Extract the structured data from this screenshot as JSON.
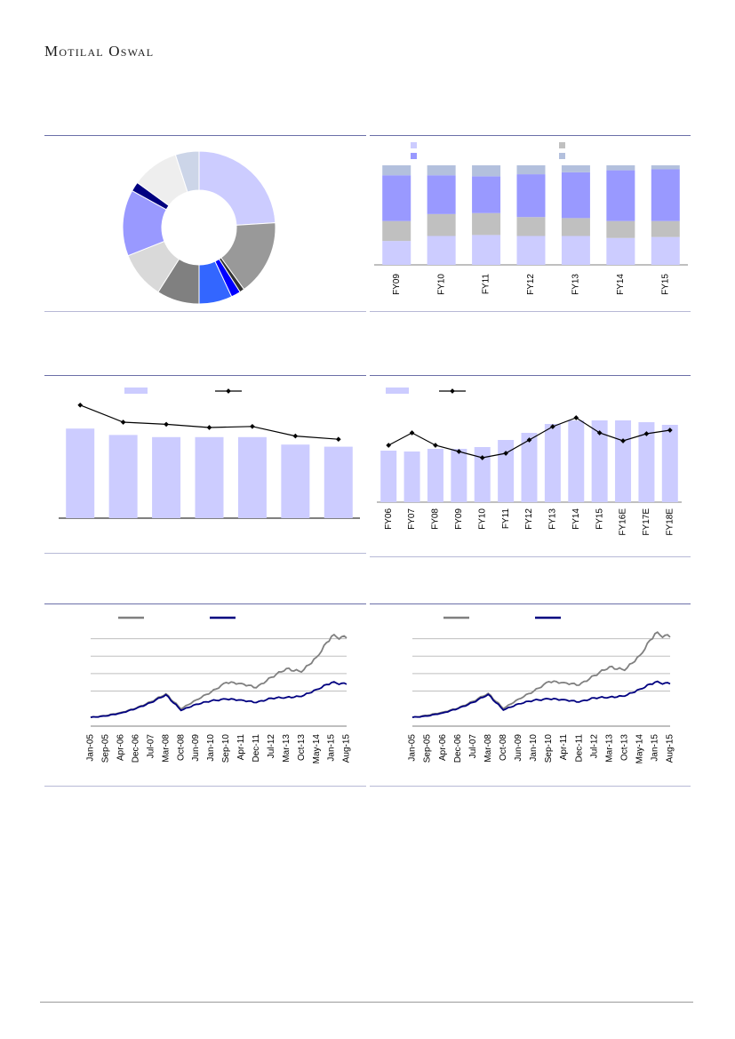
{
  "header": {
    "brand": "Motilal Oswal"
  },
  "colors": {
    "rule": "#6b6fa8",
    "light_bar": "#ccccff",
    "mid_bar": "#9999ff",
    "grey_bar": "#c0c0c0",
    "steel_bar": "#b3c0dd",
    "dark_navy": "#000080",
    "grey_line": "#808080"
  },
  "chart_data": [
    {
      "id": "donut",
      "type": "pie",
      "title": "",
      "slices": [
        {
          "value": 24,
          "color": "#ccccff"
        },
        {
          "value": 16,
          "color": "#999999"
        },
        {
          "value": 1,
          "color": "#333333"
        },
        {
          "value": 2,
          "color": "#0000ff"
        },
        {
          "value": 7,
          "color": "#3366ff"
        },
        {
          "value": 9,
          "color": "#808080"
        },
        {
          "value": 10,
          "color": "#d9d9d9"
        },
        {
          "value": 14,
          "color": "#9999ff"
        },
        {
          "value": 2,
          "color": "#000080"
        },
        {
          "value": 10,
          "color": "#eeeeee"
        },
        {
          "value": 5,
          "color": "#ccd5e8"
        }
      ]
    },
    {
      "id": "stacked",
      "type": "bar",
      "title": "",
      "categories": [
        "FY09",
        "FY10",
        "FY11",
        "FY12",
        "FY13",
        "FY14",
        "FY15"
      ],
      "series": [
        {
          "values": [
            24,
            29,
            30,
            29,
            29,
            27,
            28
          ],
          "color": "#ccccff"
        },
        {
          "values": [
            20,
            22,
            22,
            19,
            18,
            17,
            16
          ],
          "color": "#c0c0c0"
        },
        {
          "values": [
            46,
            39,
            37,
            43,
            46,
            51,
            52
          ],
          "color": "#9999ff"
        },
        {
          "values": [
            10,
            10,
            11,
            9,
            7,
            5,
            4
          ],
          "color": "#b3c0dd"
        }
      ],
      "legend_colors": [
        "#ccccff",
        "#9999ff",
        "#c0c0c0",
        "#b3c0dd"
      ],
      "ylim": [
        0,
        100
      ]
    },
    {
      "id": "bars_line_a",
      "type": "bar",
      "title": "",
      "categories": [
        "",
        "",
        "",
        "",
        "",
        "",
        ""
      ],
      "series": [
        {
          "type": "bar",
          "values": [
            84,
            78,
            76,
            76,
            76,
            69,
            67
          ],
          "color": "#ccccff"
        },
        {
          "type": "line",
          "values": [
            106,
            90,
            88,
            85,
            86,
            77,
            74
          ],
          "color": "#000000"
        }
      ],
      "ylim": [
        0,
        115
      ]
    },
    {
      "id": "bars_line_b",
      "type": "bar",
      "title": "",
      "categories": [
        "FY06",
        "FY07",
        "FY08",
        "FY09",
        "FY10",
        "FY11",
        "FY12",
        "FY13",
        "FY14",
        "FY15",
        "FY16E",
        "FY17E",
        "FY18E"
      ],
      "series": [
        {
          "type": "bar",
          "values": [
            58,
            57,
            60,
            60,
            62,
            70,
            78,
            88,
            92,
            92,
            92,
            90,
            87
          ],
          "color": "#ccccff"
        },
        {
          "type": "line",
          "values": [
            64,
            78,
            64,
            57,
            50,
            55,
            70,
            85,
            95,
            78,
            69,
            77,
            81
          ],
          "color": "#000000"
        }
      ],
      "ylim": [
        0,
        100
      ]
    },
    {
      "id": "index_a",
      "type": "line",
      "title": "",
      "x": [
        "Jan-05",
        "Sep-05",
        "Apr-06",
        "Dec-06",
        "Jul-07",
        "Mar-08",
        "Oct-08",
        "Jun-09",
        "Jan-10",
        "Sep-10",
        "Apr-11",
        "Dec-11",
        "Jul-12",
        "Mar-13",
        "Oct-13",
        "May-14",
        "Jan-15",
        "Aug-15"
      ],
      "series": [
        {
          "values": [
            100,
            110,
            128,
            152,
            190,
            235,
            148,
            200,
            245,
            300,
            295,
            270,
            330,
            380,
            360,
            445,
            565,
            555
          ],
          "color": "#808080"
        },
        {
          "values": [
            100,
            108,
            125,
            150,
            185,
            230,
            140,
            175,
            195,
            205,
            200,
            185,
            210,
            215,
            220,
            260,
            300,
            290
          ],
          "color": "#000080"
        }
      ],
      "ylim": [
        50,
        600
      ]
    },
    {
      "id": "index_b",
      "type": "line",
      "title": "",
      "x": [
        "Jan-05",
        "Sep-05",
        "Apr-06",
        "Dec-06",
        "Jul-07",
        "Mar-08",
        "Oct-08",
        "Jun-09",
        "Jan-10",
        "Sep-10",
        "Apr-11",
        "Dec-11",
        "Jul-12",
        "Mar-13",
        "Oct-13",
        "May-14",
        "Jan-15",
        "Aug-15"
      ],
      "series": [
        {
          "values": [
            100,
            112,
            130,
            152,
            192,
            238,
            150,
            205,
            250,
            305,
            300,
            285,
            340,
            390,
            370,
            455,
            580,
            560
          ],
          "color": "#808080"
        },
        {
          "values": [
            100,
            108,
            126,
            150,
            186,
            232,
            142,
            178,
            198,
            206,
            202,
            188,
            212,
            216,
            222,
            262,
            302,
            292
          ],
          "color": "#000080"
        }
      ],
      "ylim": [
        50,
        600
      ]
    }
  ]
}
